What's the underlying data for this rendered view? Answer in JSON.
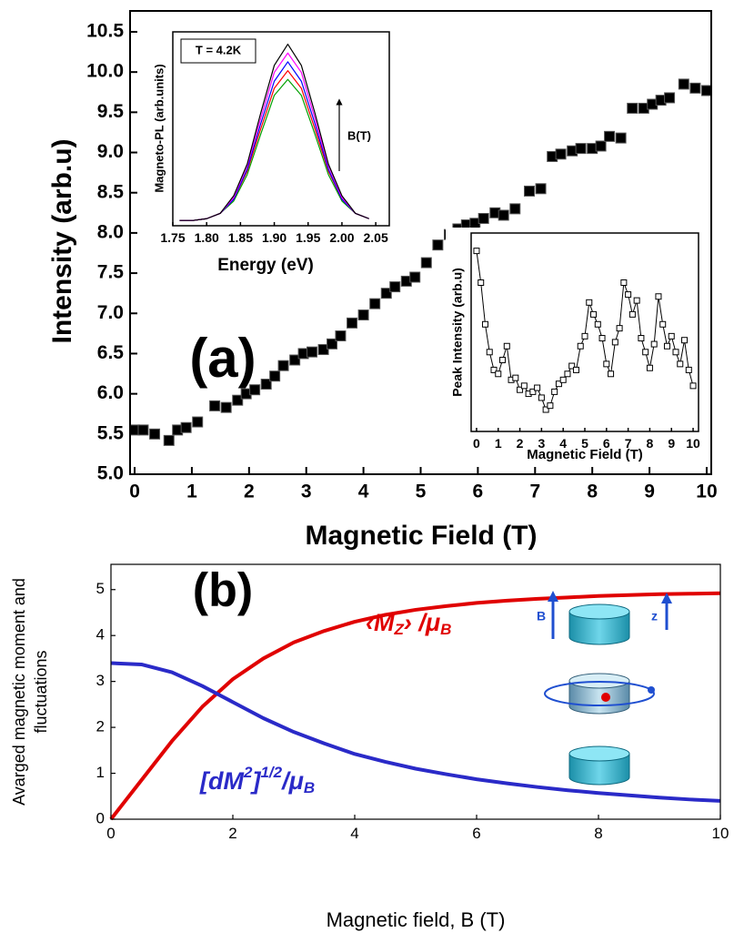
{
  "chart_data": [
    {
      "type": "scatter",
      "xlabel": "Magnetic Field (T)",
      "ylabel": "Intensity (arb.u)",
      "annotations": [
        "(a)"
      ],
      "x": [
        0,
        0.15,
        0.35,
        0.6,
        0.75,
        0.9,
        1.1,
        1.4,
        1.6,
        1.8,
        1.95,
        2.1,
        2.3,
        2.45,
        2.6,
        2.8,
        2.95,
        3.1,
        3.3,
        3.45,
        3.6,
        3.8,
        4.0,
        4.2,
        4.4,
        4.55,
        4.75,
        4.9,
        5.1,
        5.3,
        5.5,
        5.65,
        5.8,
        5.95,
        6.1,
        6.3,
        6.45,
        6.65,
        6.9,
        7.1,
        7.3,
        7.45,
        7.65,
        7.8,
        8.0,
        8.15,
        8.3,
        8.5,
        8.7,
        8.9,
        9.05,
        9.2,
        9.35,
        9.6,
        9.8,
        10.0
      ],
      "series": [
        {
          "color": "#000000",
          "values": [
            5.55,
            5.55,
            5.5,
            5.42,
            5.55,
            5.58,
            5.65,
            5.85,
            5.83,
            5.92,
            6.0,
            6.05,
            6.12,
            6.22,
            6.35,
            6.42,
            6.5,
            6.52,
            6.55,
            6.62,
            6.72,
            6.88,
            6.98,
            7.12,
            7.25,
            7.33,
            7.4,
            7.45,
            7.63,
            7.85,
            7.98,
            8.05,
            8.1,
            8.12,
            8.18,
            8.25,
            8.22,
            8.3,
            8.52,
            8.55,
            8.95,
            8.98,
            9.02,
            9.05,
            9.05,
            9.08,
            9.2,
            9.18,
            9.55,
            9.55,
            9.6,
            9.65,
            9.68,
            9.85,
            9.8,
            9.77
          ]
        }
      ],
      "xlim": [
        -0.08,
        10.08
      ],
      "ylim": [
        5.0,
        10.76
      ],
      "xticks": [
        0,
        1,
        2,
        3,
        4,
        5,
        6,
        7,
        8,
        9,
        10
      ],
      "yticks": [
        {
          "value": 5,
          "label": "5.0"
        },
        5.5,
        {
          "value": 6,
          "label": "6.0"
        },
        6.5,
        {
          "value": 7,
          "label": "7.0"
        },
        7.5,
        {
          "value": 8,
          "label": "8.0"
        },
        8.5,
        {
          "value": 9,
          "label": "9.0"
        },
        9.5,
        {
          "value": 10,
          "label": "10.0"
        },
        10.5
      ]
    },
    {
      "type": "line",
      "xlabel": "Energy (eV)",
      "ylabel": "Magneto-PL (arb.units)",
      "annotations": [
        "T = 4.2K",
        "B(T)"
      ],
      "x": [
        1.76,
        1.78,
        1.8,
        1.82,
        1.84,
        1.86,
        1.88,
        1.9,
        1.92,
        1.94,
        1.96,
        1.98,
        2.0,
        2.02,
        2.04
      ],
      "series": [
        {
          "color": "#00a000",
          "values": [
            0.03,
            0.03,
            0.04,
            0.07,
            0.14,
            0.29,
            0.52,
            0.74,
            0.83,
            0.74,
            0.52,
            0.29,
            0.14,
            0.07,
            0.04
          ]
        },
        {
          "color": "#ff0000",
          "values": [
            0.03,
            0.03,
            0.04,
            0.07,
            0.15,
            0.31,
            0.55,
            0.78,
            0.88,
            0.78,
            0.55,
            0.31,
            0.15,
            0.07,
            0.04
          ]
        },
        {
          "color": "#0000ff",
          "values": [
            0.03,
            0.03,
            0.04,
            0.07,
            0.15,
            0.32,
            0.58,
            0.82,
            0.93,
            0.82,
            0.58,
            0.32,
            0.15,
            0.07,
            0.04
          ]
        },
        {
          "color": "#ff00ff",
          "values": [
            0.03,
            0.03,
            0.04,
            0.07,
            0.16,
            0.34,
            0.61,
            0.87,
            0.98,
            0.87,
            0.61,
            0.34,
            0.16,
            0.07,
            0.04
          ]
        },
        {
          "color": "#000000",
          "values": [
            0.03,
            0.03,
            0.04,
            0.07,
            0.17,
            0.35,
            0.64,
            0.91,
            1.03,
            0.91,
            0.64,
            0.35,
            0.17,
            0.07,
            0.04
          ]
        }
      ],
      "xlim": [
        1.75,
        2.07
      ],
      "ylim": [
        0,
        1.1
      ],
      "xticks": [
        1.75,
        {
          "value": 1.8,
          "label": "1.80"
        },
        1.85,
        {
          "value": 1.9,
          "label": "1.90"
        },
        1.95,
        {
          "value": 2.0,
          "label": "2.00"
        },
        2.05
      ]
    },
    {
      "type": "line",
      "markers": "square",
      "xlabel": "Magnetic Field (T)",
      "ylabel": "Peak Intensity (arb.u)",
      "x": [
        0,
        0.2,
        0.4,
        0.6,
        0.8,
        1.0,
        1.2,
        1.4,
        1.6,
        1.8,
        2.0,
        2.2,
        2.4,
        2.6,
        2.8,
        3.0,
        3.2,
        3.4,
        3.6,
        3.8,
        4.0,
        4.2,
        4.4,
        4.6,
        4.8,
        5.0,
        5.2,
        5.4,
        5.6,
        5.8,
        6.0,
        6.2,
        6.4,
        6.6,
        6.8,
        7.0,
        7.2,
        7.4,
        7.6,
        7.8,
        8.0,
        8.2,
        8.4,
        8.6,
        8.8,
        9.0,
        9.2,
        9.4,
        9.6,
        9.8,
        10.0
      ],
      "series": [
        {
          "color": "#000000",
          "values": [
            0.91,
            0.75,
            0.54,
            0.4,
            0.31,
            0.29,
            0.36,
            0.43,
            0.26,
            0.27,
            0.21,
            0.23,
            0.19,
            0.2,
            0.22,
            0.17,
            0.11,
            0.13,
            0.2,
            0.24,
            0.26,
            0.29,
            0.33,
            0.31,
            0.43,
            0.48,
            0.65,
            0.59,
            0.54,
            0.47,
            0.34,
            0.29,
            0.45,
            0.52,
            0.75,
            0.69,
            0.59,
            0.66,
            0.47,
            0.4,
            0.32,
            0.44,
            0.68,
            0.54,
            0.43,
            0.48,
            0.4,
            0.34,
            0.46,
            0.31,
            0.23
          ]
        }
      ],
      "xlim": [
        -0.25,
        10.25
      ],
      "ylim": [
        0,
        1
      ],
      "xticks": [
        0,
        1,
        2,
        3,
        4,
        5,
        6,
        7,
        8,
        9,
        10
      ]
    },
    {
      "type": "line",
      "xlabel": "Magnetic field, B (T)",
      "ylabel": [
        "Avarged magnetic moment and",
        "fluctuations"
      ],
      "annotations": [
        "(b)",
        "B",
        "z"
      ],
      "x": [
        0,
        0.5,
        1,
        1.5,
        2,
        2.5,
        3,
        3.5,
        4,
        4.5,
        5,
        5.5,
        6,
        6.5,
        7,
        7.5,
        8,
        8.5,
        9,
        9.5,
        10
      ],
      "series": [
        {
          "color": "#e00000",
          "label": [
            "‹M",
            "Z",
            "› /μ",
            "B"
          ],
          "values": [
            0,
            0.85,
            1.7,
            2.45,
            3.05,
            3.5,
            3.85,
            4.1,
            4.3,
            4.45,
            4.56,
            4.64,
            4.71,
            4.76,
            4.8,
            4.83,
            4.86,
            4.88,
            4.9,
            4.91,
            4.92
          ]
        },
        {
          "color": "#2a2ac8",
          "label": [
            "[dM",
            "2",
            "]",
            "1/2",
            "/μ",
            "B"
          ],
          "values": [
            3.4,
            3.37,
            3.2,
            2.9,
            2.55,
            2.2,
            1.9,
            1.65,
            1.42,
            1.25,
            1.1,
            0.98,
            0.87,
            0.78,
            0.7,
            0.63,
            0.57,
            0.52,
            0.47,
            0.43,
            0.4
          ]
        }
      ],
      "xlim": [
        0,
        10
      ],
      "ylim": [
        0,
        5.55
      ],
      "xticks": [
        0,
        2,
        4,
        6,
        8,
        10
      ],
      "yticks": [
        0,
        1,
        2,
        3,
        4,
        5
      ]
    }
  ]
}
